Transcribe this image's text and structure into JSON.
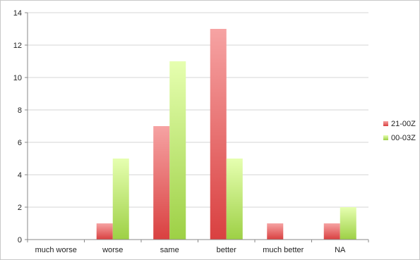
{
  "chart_data": {
    "type": "bar",
    "categories": [
      "much worse",
      "worse",
      "same",
      "better",
      "much better",
      "NA"
    ],
    "series": [
      {
        "name": "21-00Z",
        "values": [
          0,
          1,
          7,
          13,
          1,
          1
        ],
        "color_top": "#f6a3a3",
        "color_bottom": "#d94040"
      },
      {
        "name": "00-03Z",
        "values": [
          0,
          5,
          11,
          5,
          0,
          2
        ],
        "color_top": "#e6ffb0",
        "color_bottom": "#9dd045"
      }
    ],
    "ylim": [
      0,
      14
    ],
    "yticks": [
      0,
      2,
      4,
      6,
      8,
      10,
      12,
      14
    ],
    "grid": true,
    "legend_position": "right"
  }
}
